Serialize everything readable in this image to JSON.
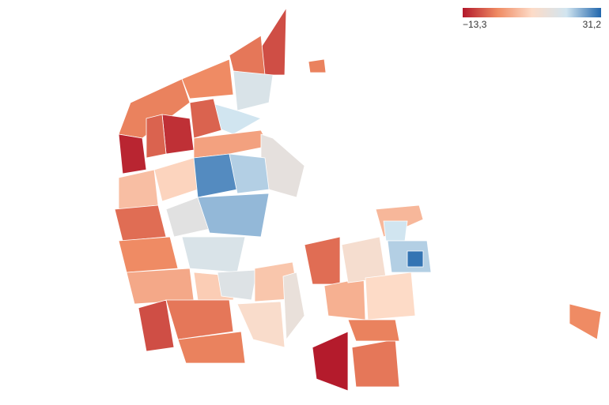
{
  "chart_data": {
    "type": "choropleth",
    "legend": {
      "min": {
        "value": -13.3,
        "label": "−13,3"
      },
      "max": {
        "value": 31.2,
        "label": "31,2"
      },
      "colors": [
        "#b2182b",
        "#ef8a62",
        "#fddbc7",
        "#d1e5f0",
        "#2166ac"
      ]
    },
    "values": [
      -8,
      -4,
      -2,
      -3,
      18,
      20,
      -6,
      -11,
      -12,
      -6,
      1,
      15,
      5,
      8,
      28,
      22,
      -5,
      16,
      24,
      18,
      -2,
      2,
      7,
      -8,
      -4,
      -3,
      17,
      6,
      10,
      14,
      -13,
      -4,
      -5,
      3,
      11,
      9,
      -3,
      4,
      20,
      22,
      30,
      -2,
      -3
    ]
  }
}
